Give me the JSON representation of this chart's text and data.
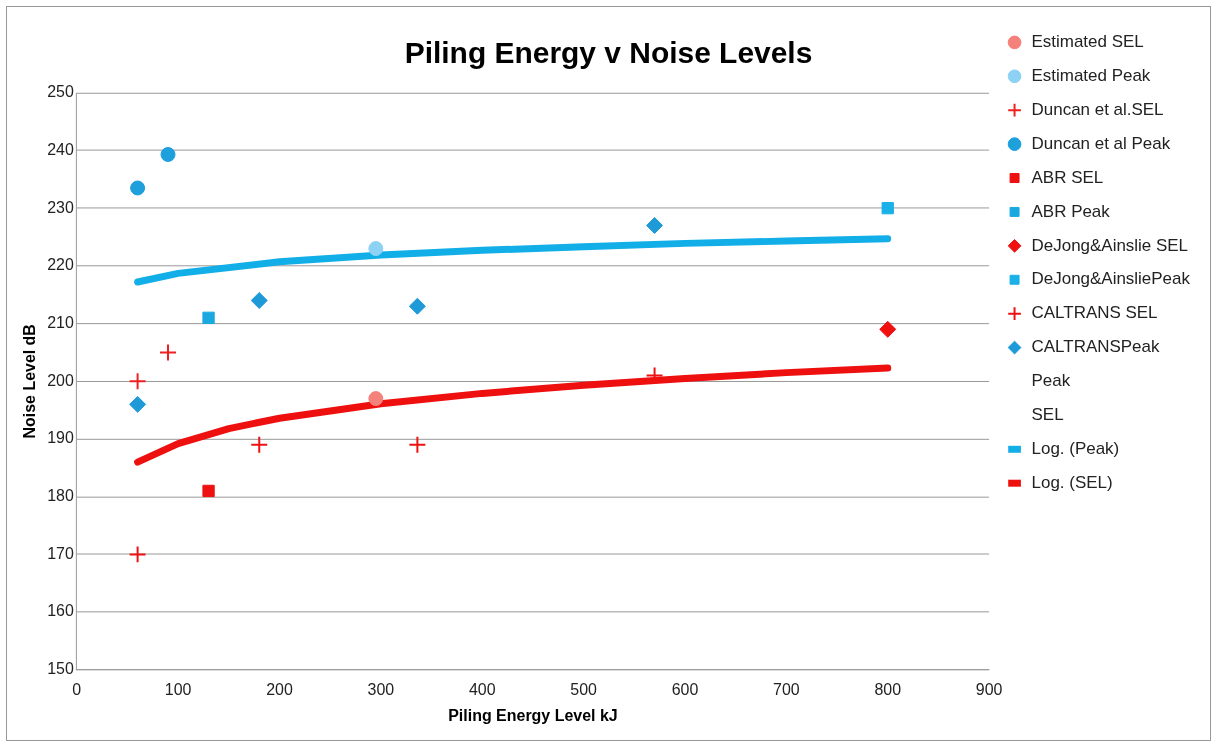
{
  "chart_data": {
    "type": "scatter",
    "title": "Piling Energy v Noise Levels",
    "xlabel": "Piling Energy Level kJ",
    "ylabel": "Noise Level dB",
    "xlim": [
      0,
      900
    ],
    "xticks": [
      0,
      100,
      200,
      300,
      400,
      500,
      600,
      700,
      800,
      900
    ],
    "ylim": [
      150,
      250
    ],
    "yticks": [
      150,
      160,
      170,
      180,
      190,
      200,
      210,
      220,
      230,
      240,
      250
    ],
    "grid": "y",
    "legend": "right",
    "series": [
      {
        "name": "Estimated SEL",
        "color": "#f4827a",
        "marker": "circle",
        "x": [
          295
        ],
        "values": [
          197
        ]
      },
      {
        "name": "Estimated Peak",
        "color": "#8dd2f5",
        "marker": "circle",
        "x": [
          295
        ],
        "values": [
          223
        ]
      },
      {
        "name": "Duncan et al.SEL",
        "color": "#ee2020",
        "marker": "cross",
        "x": [
          60,
          90
        ],
        "values": [
          200,
          205
        ]
      },
      {
        "name": "Duncan et al Peak",
        "color": "#1ea0dc",
        "marker": "circle",
        "x": [
          60,
          90
        ],
        "values": [
          233.5,
          239.3
        ]
      },
      {
        "name": "ABR SEL",
        "color": "#ee1111",
        "marker": "square",
        "x": [
          130
        ],
        "values": [
          181
        ]
      },
      {
        "name": "ABR Peak",
        "color": "#1aa8e0",
        "marker": "square",
        "x": [
          130
        ],
        "values": [
          211
        ]
      },
      {
        "name": "DeJong&Ainslie SEL",
        "color": "#f01010",
        "marker": "diamond",
        "x": [
          800
        ],
        "values": [
          209
        ]
      },
      {
        "name": "DeJong&AinsliePeak",
        "color": "#1ab0e8",
        "marker": "square",
        "x": [
          800
        ],
        "values": [
          230
        ]
      },
      {
        "name": "CALTRANS SEL",
        "color": "#ee1111",
        "marker": "cross",
        "x": [
          60,
          180,
          336,
          570
        ],
        "values": [
          170,
          189,
          189,
          201
        ]
      },
      {
        "name": "CALTRANSPeak",
        "color": "#1e9ad8",
        "marker": "diamond",
        "x": [
          60,
          180,
          336,
          570
        ],
        "values": [
          196,
          214,
          213,
          227
        ]
      },
      {
        "name": "Peak",
        "marker": "none"
      },
      {
        "name": "SEL",
        "marker": "none"
      },
      {
        "name": "Log. (Peak)",
        "type": "line",
        "color": "#12aee8",
        "marker": "none",
        "x": [
          60,
          100,
          200,
          300,
          400,
          500,
          600,
          700,
          800
        ],
        "values": [
          217.2,
          218.7,
          220.7,
          221.9,
          222.7,
          223.3,
          223.9,
          224.3,
          224.7
        ]
      },
      {
        "name": "Log. (SEL)",
        "type": "line",
        "color": "#ee0f0f",
        "marker": "none",
        "x": [
          60,
          100,
          150,
          200,
          300,
          400,
          500,
          600,
          700,
          800
        ],
        "values": [
          186,
          189.2,
          191.8,
          193.6,
          196.1,
          197.9,
          199.3,
          200.5,
          201.5,
          202.3
        ]
      }
    ]
  }
}
